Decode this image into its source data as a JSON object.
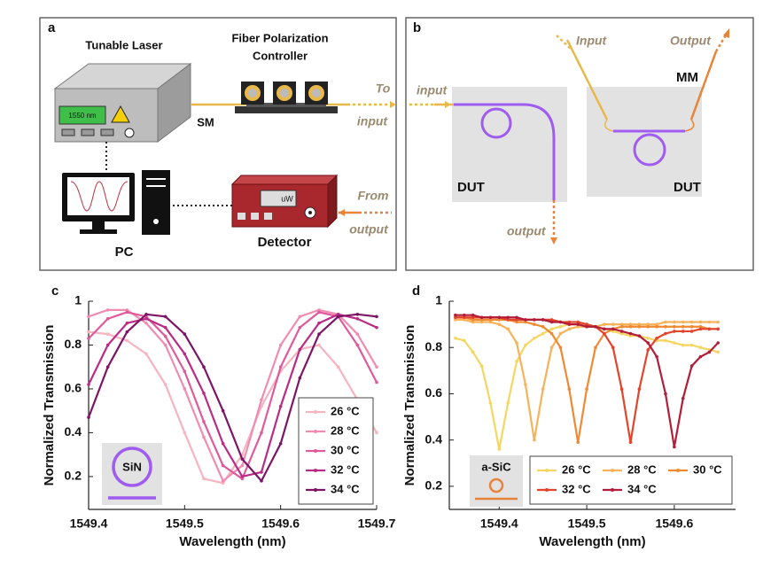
{
  "panel_a": {
    "label": "a",
    "laser": "Tunable Laser",
    "laser_display": "1550 nm",
    "controller": [
      "Fiber Polarization",
      "Controller"
    ],
    "fiber": "SM",
    "to": [
      "To",
      "input"
    ],
    "pc": "PC",
    "detector": "Detector",
    "detector_display": "uW",
    "from": [
      "From",
      "output"
    ]
  },
  "panel_b": {
    "label": "b",
    "input_left": "input",
    "output_left": "output",
    "dut_left": "DUT",
    "input_right": "Input",
    "output_right": "Output",
    "mm": "MM",
    "dut_right": "DUT"
  },
  "chart_data": [
    {
      "type": "line",
      "label": "c",
      "x_label": "Wavelength (nm)",
      "y_label": "Normalized Transmission",
      "inset_label": "SiN",
      "legend": "lower right",
      "x": [
        1549.4,
        1549.42,
        1549.44,
        1549.46,
        1549.48,
        1549.5,
        1549.52,
        1549.54,
        1549.56,
        1549.58,
        1549.6,
        1549.62,
        1549.64,
        1549.66,
        1549.68,
        1549.7
      ],
      "xlim": [
        1549.4,
        1549.7
      ],
      "xticks": [
        1549.4,
        1549.5,
        1549.6,
        1549.7
      ],
      "ylim": [
        0.05,
        1.0
      ],
      "yticks": [
        0.2,
        0.4,
        0.6,
        0.8,
        1
      ],
      "series": [
        {
          "name": "26 °C",
          "color": "#f6b3c0",
          "values": [
            0.86,
            0.85,
            0.82,
            0.76,
            0.62,
            0.4,
            0.19,
            0.17,
            0.3,
            0.52,
            0.68,
            0.78,
            0.8,
            0.7,
            0.55,
            0.4
          ]
        },
        {
          "name": "28 °C",
          "color": "#f08cb1",
          "values": [
            0.93,
            0.96,
            0.96,
            0.9,
            0.8,
            0.6,
            0.38,
            0.18,
            0.25,
            0.55,
            0.8,
            0.93,
            0.96,
            0.94,
            0.85,
            0.7
          ]
        },
        {
          "name": "30 °C",
          "color": "#de5a9c",
          "values": [
            0.83,
            0.92,
            0.95,
            0.93,
            0.84,
            0.68,
            0.45,
            0.25,
            0.19,
            0.4,
            0.7,
            0.88,
            0.95,
            0.93,
            0.8,
            0.63
          ]
        },
        {
          "name": "32 °C",
          "color": "#b92b85",
          "values": [
            0.62,
            0.8,
            0.9,
            0.92,
            0.88,
            0.76,
            0.58,
            0.35,
            0.2,
            0.22,
            0.52,
            0.78,
            0.9,
            0.94,
            0.92,
            0.88
          ]
        },
        {
          "name": "34 °C",
          "color": "#7d1466",
          "values": [
            0.47,
            0.7,
            0.86,
            0.94,
            0.93,
            0.85,
            0.7,
            0.5,
            0.28,
            0.18,
            0.35,
            0.65,
            0.85,
            0.93,
            0.94,
            0.93
          ]
        }
      ]
    },
    {
      "type": "line",
      "label": "d",
      "x_label": "Wavelength (nm)",
      "y_label": "Normalized Transmission",
      "inset_label": "a-SiC",
      "legend": "lower right",
      "x": [
        1549.35,
        1549.36,
        1549.37,
        1549.38,
        1549.39,
        1549.4,
        1549.41,
        1549.42,
        1549.43,
        1549.44,
        1549.45,
        1549.46,
        1549.47,
        1549.48,
        1549.49,
        1549.5,
        1549.51,
        1549.52,
        1549.53,
        1549.54,
        1549.55,
        1549.56,
        1549.57,
        1549.58,
        1549.59,
        1549.6,
        1549.61,
        1549.62,
        1549.63,
        1549.64,
        1549.65
      ],
      "xlim": [
        1549.343,
        1549.67
      ],
      "xticks": [
        1549.4,
        1549.5,
        1549.6
      ],
      "ylim": [
        0.1,
        1.0
      ],
      "yticks": [
        0.2,
        0.4,
        0.6,
        0.8,
        1
      ],
      "series": [
        {
          "name": "26 °C",
          "color": "#f4d663",
          "values": [
            0.84,
            0.83,
            0.78,
            0.72,
            0.56,
            0.36,
            0.56,
            0.74,
            0.81,
            0.84,
            0.86,
            0.88,
            0.89,
            0.9,
            0.9,
            0.9,
            0.89,
            0.88,
            0.87,
            0.86,
            0.85,
            0.85,
            0.84,
            0.83,
            0.83,
            0.82,
            0.81,
            0.81,
            0.8,
            0.79,
            0.78
          ]
        },
        {
          "name": "28 °C",
          "color": "#f7b25a",
          "values": [
            0.92,
            0.92,
            0.91,
            0.91,
            0.91,
            0.9,
            0.88,
            0.82,
            0.64,
            0.4,
            0.62,
            0.8,
            0.86,
            0.88,
            0.89,
            0.89,
            0.89,
            0.9,
            0.9,
            0.9,
            0.9,
            0.9,
            0.9,
            0.9,
            0.91,
            0.91,
            0.91,
            0.91,
            0.91,
            0.91,
            0.91
          ]
        },
        {
          "name": "30 °C",
          "color": "#f08a32",
          "values": [
            0.93,
            0.93,
            0.92,
            0.92,
            0.92,
            0.92,
            0.92,
            0.91,
            0.91,
            0.9,
            0.89,
            0.86,
            0.8,
            0.62,
            0.39,
            0.62,
            0.8,
            0.86,
            0.88,
            0.89,
            0.89,
            0.89,
            0.89,
            0.89,
            0.89,
            0.89,
            0.89,
            0.89,
            0.89,
            0.88,
            0.88
          ]
        },
        {
          "name": "32 °C",
          "color": "#e2452c",
          "values": [
            0.93,
            0.93,
            0.93,
            0.93,
            0.93,
            0.93,
            0.92,
            0.92,
            0.92,
            0.92,
            0.92,
            0.92,
            0.91,
            0.91,
            0.91,
            0.9,
            0.89,
            0.86,
            0.8,
            0.62,
            0.39,
            0.62,
            0.79,
            0.84,
            0.86,
            0.87,
            0.87,
            0.87,
            0.88,
            0.88,
            0.88
          ]
        },
        {
          "name": "34 °C",
          "color": "#b21e3a",
          "values": [
            0.94,
            0.94,
            0.94,
            0.93,
            0.93,
            0.93,
            0.93,
            0.93,
            0.92,
            0.92,
            0.92,
            0.91,
            0.91,
            0.9,
            0.9,
            0.89,
            0.89,
            0.88,
            0.88,
            0.87,
            0.86,
            0.85,
            0.82,
            0.76,
            0.6,
            0.37,
            0.58,
            0.72,
            0.76,
            0.78,
            0.82
          ]
        }
      ]
    }
  ]
}
